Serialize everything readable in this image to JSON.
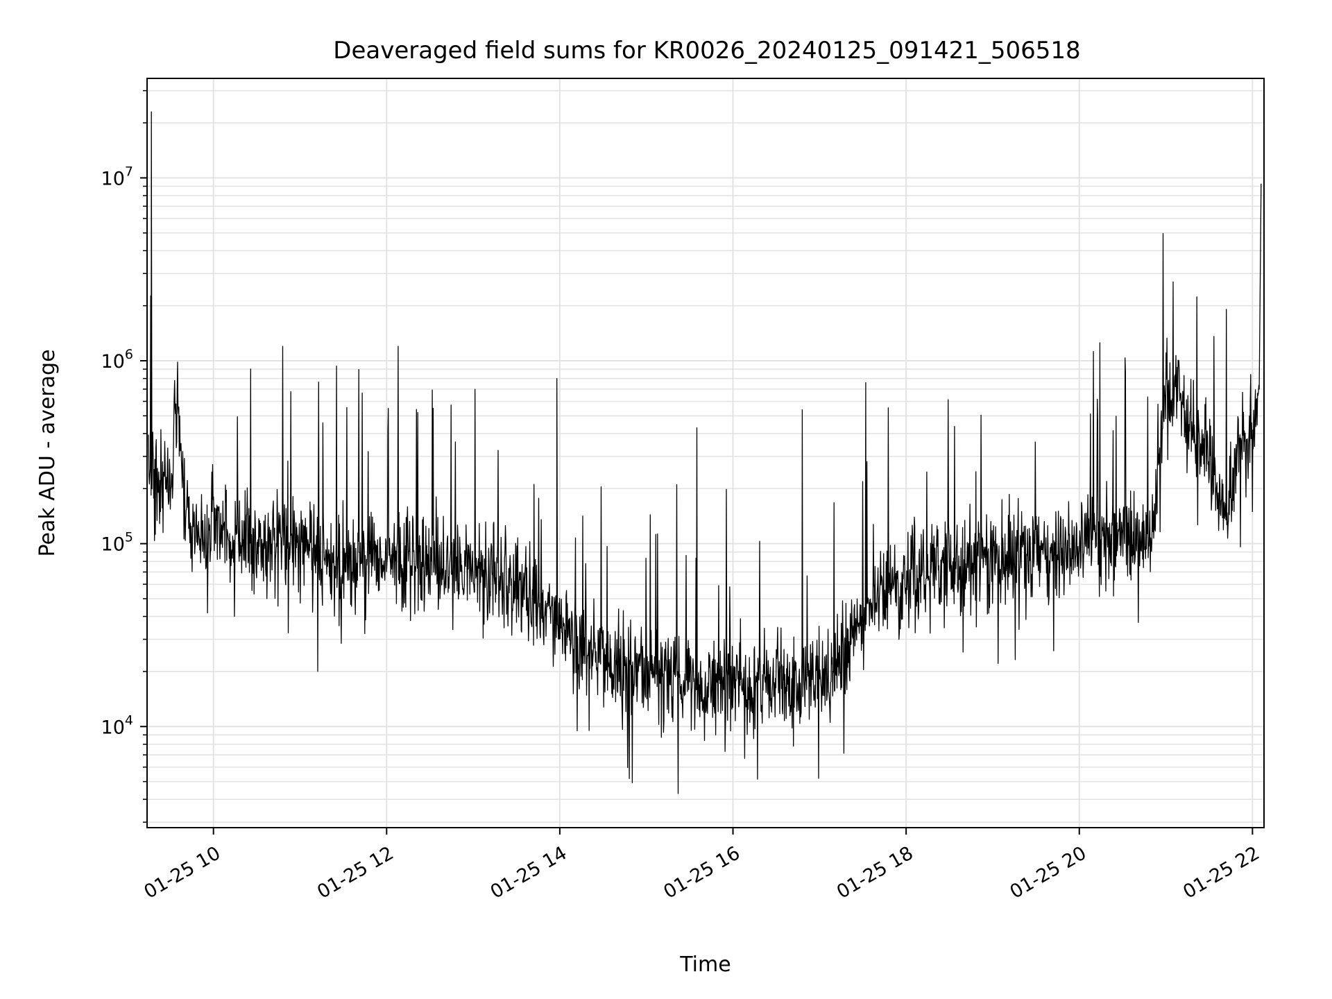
{
  "chart_data": {
    "type": "line",
    "title": "Deaveraged field sums for KR0026_20240125_091421_506518",
    "xlabel": "Time",
    "ylabel": "Peak ADU - average",
    "yscale": "log",
    "ylim": [
      2800,
      35000000
    ],
    "xlim": [
      "01-25 09:14",
      "01-25 22:08"
    ],
    "x_ticks": [
      {
        "at": "01-25 10:00",
        "label": "01-25 10"
      },
      {
        "at": "01-25 12:00",
        "label": "01-25 12"
      },
      {
        "at": "01-25 14:00",
        "label": "01-25 14"
      },
      {
        "at": "01-25 16:00",
        "label": "01-25 16"
      },
      {
        "at": "01-25 18:00",
        "label": "01-25 18"
      },
      {
        "at": "01-25 20:00",
        "label": "01-25 20"
      },
      {
        "at": "01-25 22:00",
        "label": "01-25 22"
      }
    ],
    "y_ticks": [
      {
        "value": 10000,
        "base": "10",
        "exp": "4"
      },
      {
        "value": 100000,
        "base": "10",
        "exp": "5"
      },
      {
        "value": 1000000,
        "base": "10",
        "exp": "6"
      },
      {
        "value": 10000000,
        "base": "10",
        "exp": "7"
      }
    ],
    "grid": true,
    "minor_grid": true,
    "series": [
      {
        "color": "#000000",
        "x": [
          "01-25 09:15",
          "01-25 09:18",
          "01-25 09:20",
          "01-25 09:25",
          "01-25 09:30",
          "01-25 09:35",
          "01-25 09:40",
          "01-25 09:45",
          "01-25 09:50",
          "01-25 10:00",
          "01-25 10:15",
          "01-25 10:30",
          "01-25 10:45",
          "01-25 11:00",
          "01-25 11:15",
          "01-25 11:30",
          "01-25 11:45",
          "01-25 12:00",
          "01-25 12:15",
          "01-25 12:30",
          "01-25 12:45",
          "01-25 13:00",
          "01-25 13:15",
          "01-25 13:30",
          "01-25 13:45",
          "01-25 14:00",
          "01-25 14:15",
          "01-25 14:30",
          "01-25 14:45",
          "01-25 15:00",
          "01-25 15:15",
          "01-25 15:30",
          "01-25 15:45",
          "01-25 16:00",
          "01-25 16:15",
          "01-25 16:30",
          "01-25 16:45",
          "01-25 17:00",
          "01-25 17:15",
          "01-25 17:30",
          "01-25 17:45",
          "01-25 18:00",
          "01-25 18:15",
          "01-25 18:30",
          "01-25 18:45",
          "01-25 19:00",
          "01-25 19:15",
          "01-25 19:30",
          "01-25 19:45",
          "01-25 20:00",
          "01-25 20:15",
          "01-25 20:30",
          "01-25 20:45",
          "01-25 20:50",
          "01-25 21:00",
          "01-25 21:10",
          "01-25 21:20",
          "01-25 21:30",
          "01-25 21:40",
          "01-25 21:50",
          "01-25 22:00",
          "01-25 22:05"
        ],
        "y": [
          300000,
          250000,
          200000,
          250000,
          220000,
          550000,
          150000,
          120000,
          130000,
          120000,
          110000,
          105000,
          100000,
          95000,
          88000,
          75000,
          80000,
          85000,
          82000,
          78000,
          74000,
          70000,
          65000,
          58000,
          46000,
          36000,
          28000,
          23000,
          21000,
          20000,
          19000,
          18500,
          18000,
          17500,
          17500,
          17500,
          18000,
          19000,
          24000,
          40000,
          55000,
          65000,
          68000,
          72000,
          78000,
          85000,
          90000,
          92000,
          96000,
          100000,
          102000,
          105000,
          108000,
          110000,
          700000,
          650000,
          400000,
          300000,
          120000,
          350000,
          420000,
          600000
        ]
      }
    ],
    "spikes": [
      {
        "x": "01-25 09:17",
        "y": 23000000
      },
      {
        "x": "01-25 10:48",
        "y": 1200000
      },
      {
        "x": "01-25 12:08",
        "y": 1200000
      },
      {
        "x": "01-25 13:58",
        "y": 800000
      },
      {
        "x": "01-25 15:35",
        "y": 430000
      },
      {
        "x": "01-25 15:22",
        "y": 4300
      },
      {
        "x": "01-25 16:48",
        "y": 540000
      },
      {
        "x": "01-25 17:32",
        "y": 760000
      },
      {
        "x": "01-25 21:05",
        "y": 2700000
      },
      {
        "x": "01-25 22:06",
        "y": 9300000
      }
    ]
  }
}
